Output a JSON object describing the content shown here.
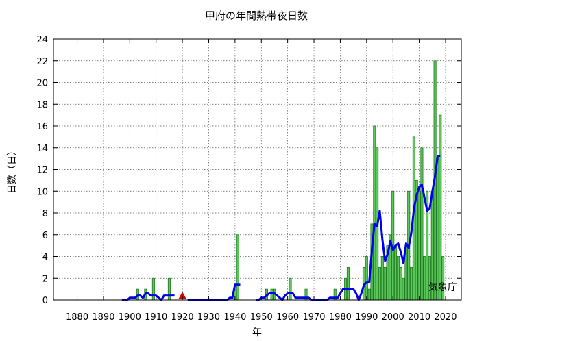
{
  "chart_data": {
    "type": "bar",
    "title": "甲府の年間熱帯夜日数",
    "xlabel": "年",
    "ylabel": "日数（日）",
    "credit": "気象庁",
    "xlim": [
      1871,
      2026
    ],
    "ylim": [
      0,
      24
    ],
    "xticks": [
      1880,
      1890,
      1900,
      1910,
      1920,
      1930,
      1940,
      1950,
      1960,
      1970,
      1980,
      1990,
      2000,
      2010,
      2020
    ],
    "yticks": [
      0,
      2,
      4,
      6,
      8,
      10,
      12,
      14,
      16,
      18,
      20,
      22,
      24
    ],
    "grid": true,
    "marker_year": 1920,
    "bar_color": "#5cc65c",
    "bar_edge": "#1f7a1f",
    "line_color": "#0000ee",
    "marker_color": "#dd0000",
    "bars": [
      {
        "year": 1897,
        "value": 0
      },
      {
        "year": 1898,
        "value": 0
      },
      {
        "year": 1899,
        "value": 0
      },
      {
        "year": 1900,
        "value": 0
      },
      {
        "year": 1901,
        "value": 0
      },
      {
        "year": 1902,
        "value": 0
      },
      {
        "year": 1903,
        "value": 1
      },
      {
        "year": 1904,
        "value": 0
      },
      {
        "year": 1905,
        "value": 0
      },
      {
        "year": 1906,
        "value": 1
      },
      {
        "year": 1907,
        "value": 0
      },
      {
        "year": 1908,
        "value": 0
      },
      {
        "year": 1909,
        "value": 2
      },
      {
        "year": 1910,
        "value": 0
      },
      {
        "year": 1911,
        "value": 0
      },
      {
        "year": 1912,
        "value": 0
      },
      {
        "year": 1913,
        "value": 0
      },
      {
        "year": 1914,
        "value": 0
      },
      {
        "year": 1915,
        "value": 2
      },
      {
        "year": 1916,
        "value": 0
      },
      {
        "year": 1922,
        "value": 0
      },
      {
        "year": 1923,
        "value": 0
      },
      {
        "year": 1924,
        "value": 0
      },
      {
        "year": 1925,
        "value": 0
      },
      {
        "year": 1926,
        "value": 0
      },
      {
        "year": 1927,
        "value": 0
      },
      {
        "year": 1928,
        "value": 0
      },
      {
        "year": 1929,
        "value": 0
      },
      {
        "year": 1930,
        "value": 0
      },
      {
        "year": 1931,
        "value": 0
      },
      {
        "year": 1932,
        "value": 0
      },
      {
        "year": 1933,
        "value": 0
      },
      {
        "year": 1934,
        "value": 0
      },
      {
        "year": 1935,
        "value": 0
      },
      {
        "year": 1936,
        "value": 0
      },
      {
        "year": 1937,
        "value": 0
      },
      {
        "year": 1938,
        "value": 0
      },
      {
        "year": 1939,
        "value": 0
      },
      {
        "year": 1940,
        "value": 1
      },
      {
        "year": 1941,
        "value": 6
      },
      {
        "year": 1948,
        "value": 0
      },
      {
        "year": 1949,
        "value": 0
      },
      {
        "year": 1950,
        "value": 0
      },
      {
        "year": 1951,
        "value": 0
      },
      {
        "year": 1952,
        "value": 1
      },
      {
        "year": 1953,
        "value": 0
      },
      {
        "year": 1954,
        "value": 1
      },
      {
        "year": 1955,
        "value": 1
      },
      {
        "year": 1956,
        "value": 0
      },
      {
        "year": 1957,
        "value": 0
      },
      {
        "year": 1958,
        "value": 0
      },
      {
        "year": 1959,
        "value": 0
      },
      {
        "year": 1960,
        "value": 0
      },
      {
        "year": 1961,
        "value": 2
      },
      {
        "year": 1962,
        "value": 0
      },
      {
        "year": 1963,
        "value": 0
      },
      {
        "year": 1964,
        "value": 0
      },
      {
        "year": 1965,
        "value": 0
      },
      {
        "year": 1966,
        "value": 0
      },
      {
        "year": 1967,
        "value": 1
      },
      {
        "year": 1968,
        "value": 0
      },
      {
        "year": 1969,
        "value": 0
      },
      {
        "year": 1970,
        "value": 0
      },
      {
        "year": 1971,
        "value": 0
      },
      {
        "year": 1972,
        "value": 0
      },
      {
        "year": 1973,
        "value": 0
      },
      {
        "year": 1974,
        "value": 0
      },
      {
        "year": 1975,
        "value": 0
      },
      {
        "year": 1976,
        "value": 0
      },
      {
        "year": 1977,
        "value": 0
      },
      {
        "year": 1978,
        "value": 1
      },
      {
        "year": 1979,
        "value": 0
      },
      {
        "year": 1980,
        "value": 0
      },
      {
        "year": 1981,
        "value": 0
      },
      {
        "year": 1982,
        "value": 2
      },
      {
        "year": 1983,
        "value": 3
      },
      {
        "year": 1984,
        "value": 0
      },
      {
        "year": 1985,
        "value": 0
      },
      {
        "year": 1986,
        "value": 0
      },
      {
        "year": 1987,
        "value": 0
      },
      {
        "year": 1988,
        "value": 0
      },
      {
        "year": 1989,
        "value": 3
      },
      {
        "year": 1990,
        "value": 4
      },
      {
        "year": 1991,
        "value": 1
      },
      {
        "year": 1992,
        "value": 7
      },
      {
        "year": 1993,
        "value": 16
      },
      {
        "year": 1994,
        "value": 14
      },
      {
        "year": 1995,
        "value": 3
      },
      {
        "year": 1996,
        "value": 4
      },
      {
        "year": 1997,
        "value": 3
      },
      {
        "year": 1998,
        "value": 5
      },
      {
        "year": 1999,
        "value": 6
      },
      {
        "year": 2000,
        "value": 10
      },
      {
        "year": 2001,
        "value": 5
      },
      {
        "year": 2002,
        "value": 4
      },
      {
        "year": 2003,
        "value": 3
      },
      {
        "year": 2004,
        "value": 2
      },
      {
        "year": 2005,
        "value": 5
      },
      {
        "year": 2006,
        "value": 10
      },
      {
        "year": 2007,
        "value": 3
      },
      {
        "year": 2008,
        "value": 15
      },
      {
        "year": 2009,
        "value": 11
      },
      {
        "year": 2010,
        "value": 10
      },
      {
        "year": 2011,
        "value": 14
      },
      {
        "year": 2012,
        "value": 4
      },
      {
        "year": 2013,
        "value": 10
      },
      {
        "year": 2014,
        "value": 4
      },
      {
        "year": 2015,
        "value": 10
      },
      {
        "year": 2016,
        "value": 22
      },
      {
        "year": 2017,
        "value": 13
      },
      {
        "year": 2018,
        "value": 17
      },
      {
        "year": 2019,
        "value": 4
      }
    ],
    "moving_average": [
      {
        "year": 1897,
        "value": 0
      },
      {
        "year": 1898,
        "value": 0
      },
      {
        "year": 1899,
        "value": 0
      },
      {
        "year": 1900,
        "value": 0.2
      },
      {
        "year": 1901,
        "value": 0.2
      },
      {
        "year": 1902,
        "value": 0.2
      },
      {
        "year": 1903,
        "value": 0.4
      },
      {
        "year": 1904,
        "value": 0.4
      },
      {
        "year": 1905,
        "value": 0.2
      },
      {
        "year": 1906,
        "value": 0.6
      },
      {
        "year": 1907,
        "value": 0.6
      },
      {
        "year": 1908,
        "value": 0.4
      },
      {
        "year": 1909,
        "value": 0.4
      },
      {
        "year": 1910,
        "value": 0.4
      },
      {
        "year": 1911,
        "value": 0.2
      },
      {
        "year": 1912,
        "value": 0
      },
      {
        "year": 1913,
        "value": 0.4
      },
      {
        "year": 1914,
        "value": 0.4
      },
      {
        "year": 1915,
        "value": 0.4
      },
      {
        "year": 1916,
        "value": 0.4
      },
      {
        "year": 1917,
        "value": 0.4
      },
      {
        "year": 1918,
        "value": null
      },
      {
        "year": 1922,
        "value": 0
      },
      {
        "year": 1930,
        "value": 0
      },
      {
        "year": 1937,
        "value": 0
      },
      {
        "year": 1938,
        "value": 0.2
      },
      {
        "year": 1939,
        "value": 0.2
      },
      {
        "year": 1940,
        "value": 1.4
      },
      {
        "year": 1941,
        "value": 1.4
      },
      {
        "year": 1942,
        "value": 1.4
      },
      {
        "year": 1943,
        "value": null
      },
      {
        "year": 1948,
        "value": 0
      },
      {
        "year": 1949,
        "value": 0
      },
      {
        "year": 1950,
        "value": 0.2
      },
      {
        "year": 1951,
        "value": 0.2
      },
      {
        "year": 1952,
        "value": 0.4
      },
      {
        "year": 1953,
        "value": 0.6
      },
      {
        "year": 1954,
        "value": 0.6
      },
      {
        "year": 1955,
        "value": 0.6
      },
      {
        "year": 1956,
        "value": 0.4
      },
      {
        "year": 1957,
        "value": 0.2
      },
      {
        "year": 1958,
        "value": 0
      },
      {
        "year": 1959,
        "value": 0.4
      },
      {
        "year": 1960,
        "value": 0.6
      },
      {
        "year": 1961,
        "value": 0.6
      },
      {
        "year": 1962,
        "value": 0.6
      },
      {
        "year": 1963,
        "value": 0.2
      },
      {
        "year": 1964,
        "value": 0.2
      },
      {
        "year": 1965,
        "value": 0.2
      },
      {
        "year": 1966,
        "value": 0.2
      },
      {
        "year": 1967,
        "value": 0.2
      },
      {
        "year": 1968,
        "value": 0.2
      },
      {
        "year": 1969,
        "value": 0
      },
      {
        "year": 1970,
        "value": 0
      },
      {
        "year": 1971,
        "value": 0
      },
      {
        "year": 1972,
        "value": 0
      },
      {
        "year": 1973,
        "value": 0
      },
      {
        "year": 1974,
        "value": 0
      },
      {
        "year": 1975,
        "value": 0
      },
      {
        "year": 1976,
        "value": 0.2
      },
      {
        "year": 1977,
        "value": 0.2
      },
      {
        "year": 1978,
        "value": 0.2
      },
      {
        "year": 1979,
        "value": 0.2
      },
      {
        "year": 1980,
        "value": 0.6
      },
      {
        "year": 1981,
        "value": 1
      },
      {
        "year": 1982,
        "value": 1
      },
      {
        "year": 1983,
        "value": 1
      },
      {
        "year": 1984,
        "value": 1
      },
      {
        "year": 1985,
        "value": 1
      },
      {
        "year": 1986,
        "value": 0.6
      },
      {
        "year": 1987,
        "value": 0
      },
      {
        "year": 1988,
        "value": 0.6
      },
      {
        "year": 1989,
        "value": 1.4
      },
      {
        "year": 1990,
        "value": 1.6
      },
      {
        "year": 1991,
        "value": 1.6
      },
      {
        "year": 1992,
        "value": 4.6
      },
      {
        "year": 1993,
        "value": 7
      },
      {
        "year": 1994,
        "value": 6.8
      },
      {
        "year": 1995,
        "value": 8.2
      },
      {
        "year": 1996,
        "value": 5.6
      },
      {
        "year": 1997,
        "value": 3.6
      },
      {
        "year": 1998,
        "value": 4.2
      },
      {
        "year": 1999,
        "value": 5.4
      },
      {
        "year": 2000,
        "value": 4.6
      },
      {
        "year": 2001,
        "value": 5
      },
      {
        "year": 2002,
        "value": 5.2
      },
      {
        "year": 2003,
        "value": 4.4
      },
      {
        "year": 2004,
        "value": 3.4
      },
      {
        "year": 2005,
        "value": 5.2
      },
      {
        "year": 2006,
        "value": 4.8
      },
      {
        "year": 2007,
        "value": 6.2
      },
      {
        "year": 2008,
        "value": 8.4
      },
      {
        "year": 2009,
        "value": 9.6
      },
      {
        "year": 2010,
        "value": 10.4
      },
      {
        "year": 2011,
        "value": 10.6
      },
      {
        "year": 2012,
        "value": 9.4
      },
      {
        "year": 2013,
        "value": 8.2
      },
      {
        "year": 2014,
        "value": 8.4
      },
      {
        "year": 2015,
        "value": 10
      },
      {
        "year": 2016,
        "value": 11.4
      },
      {
        "year": 2017,
        "value": 13.2
      },
      {
        "year": 2018,
        "value": 13.2
      }
    ]
  }
}
